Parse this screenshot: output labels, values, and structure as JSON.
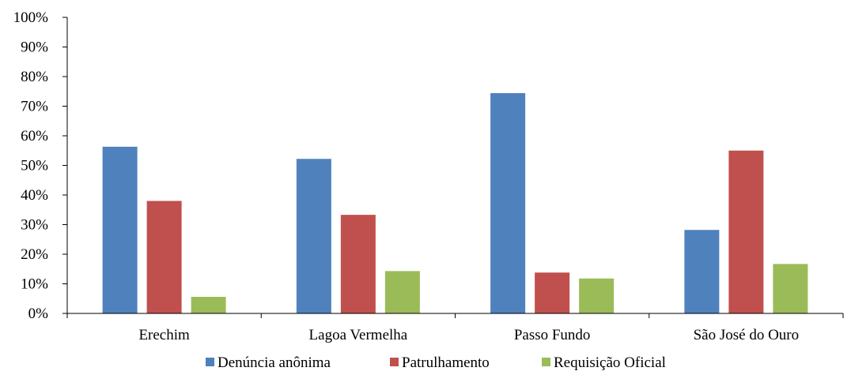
{
  "chart_data": {
    "type": "bar",
    "title": "",
    "xlabel": "",
    "ylabel": "",
    "categories": [
      "Erechim",
      "Lagoa Vermelha",
      "Passo Fundo",
      "São José do Ouro"
    ],
    "series": [
      {
        "name": "Denúncia anônima",
        "color": "#4f81bd",
        "values": [
          56.3,
          52.2,
          74.4,
          28.2
        ]
      },
      {
        "name": "Patrulhamento",
        "color": "#c0504d",
        "values": [
          38.0,
          33.3,
          13.8,
          55.0
        ]
      },
      {
        "name": "Requisição Oficial",
        "color": "#9bbb59",
        "values": [
          5.6,
          14.3,
          11.8,
          16.7
        ]
      }
    ],
    "ylim": [
      0,
      100
    ],
    "yticks": [
      "0%",
      "10%",
      "20%",
      "30%",
      "40%",
      "50%",
      "60%",
      "70%",
      "80%",
      "90%",
      "100%"
    ],
    "grid": false,
    "legend_position": "bottom"
  }
}
